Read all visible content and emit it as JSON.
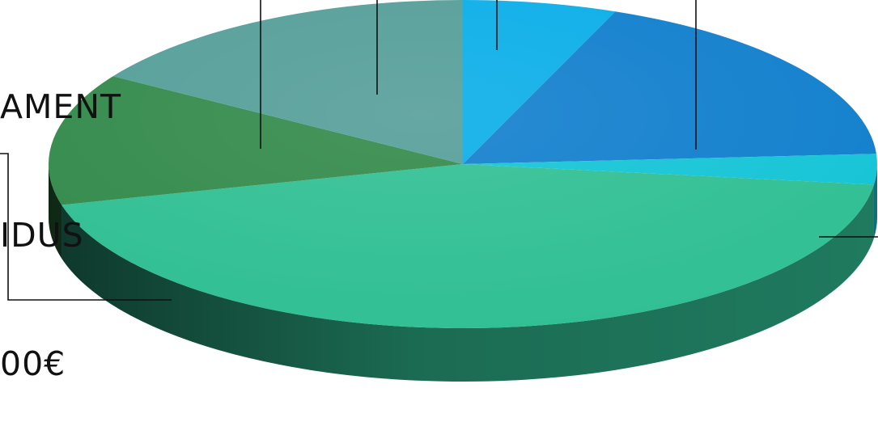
{
  "chart_data": {
    "type": "pie",
    "style": "3d",
    "slice_order": "clockwise-from-top",
    "slices": [
      {
        "value": 6,
        "color": "#0aaee8",
        "side_color": "#0779a3"
      },
      {
        "value": 18,
        "color": "#117fcd",
        "side_color": "#0b4f7f"
      },
      {
        "value": 3,
        "color": "#14c4d6",
        "side_color": "#0e6f7a"
      },
      {
        "value": 44,
        "color": "#30bf93",
        "side_color": "#1f7a5e"
      },
      {
        "value": 13,
        "color": "#338a4b",
        "side_color": "#21592f"
      },
      {
        "value": 16,
        "color": "#559e99",
        "side_color": "#356663"
      }
    ],
    "annotation": {
      "lines": [
        "AMENT",
        "IDUS",
        "00€"
      ],
      "slice_index": 3
    }
  }
}
